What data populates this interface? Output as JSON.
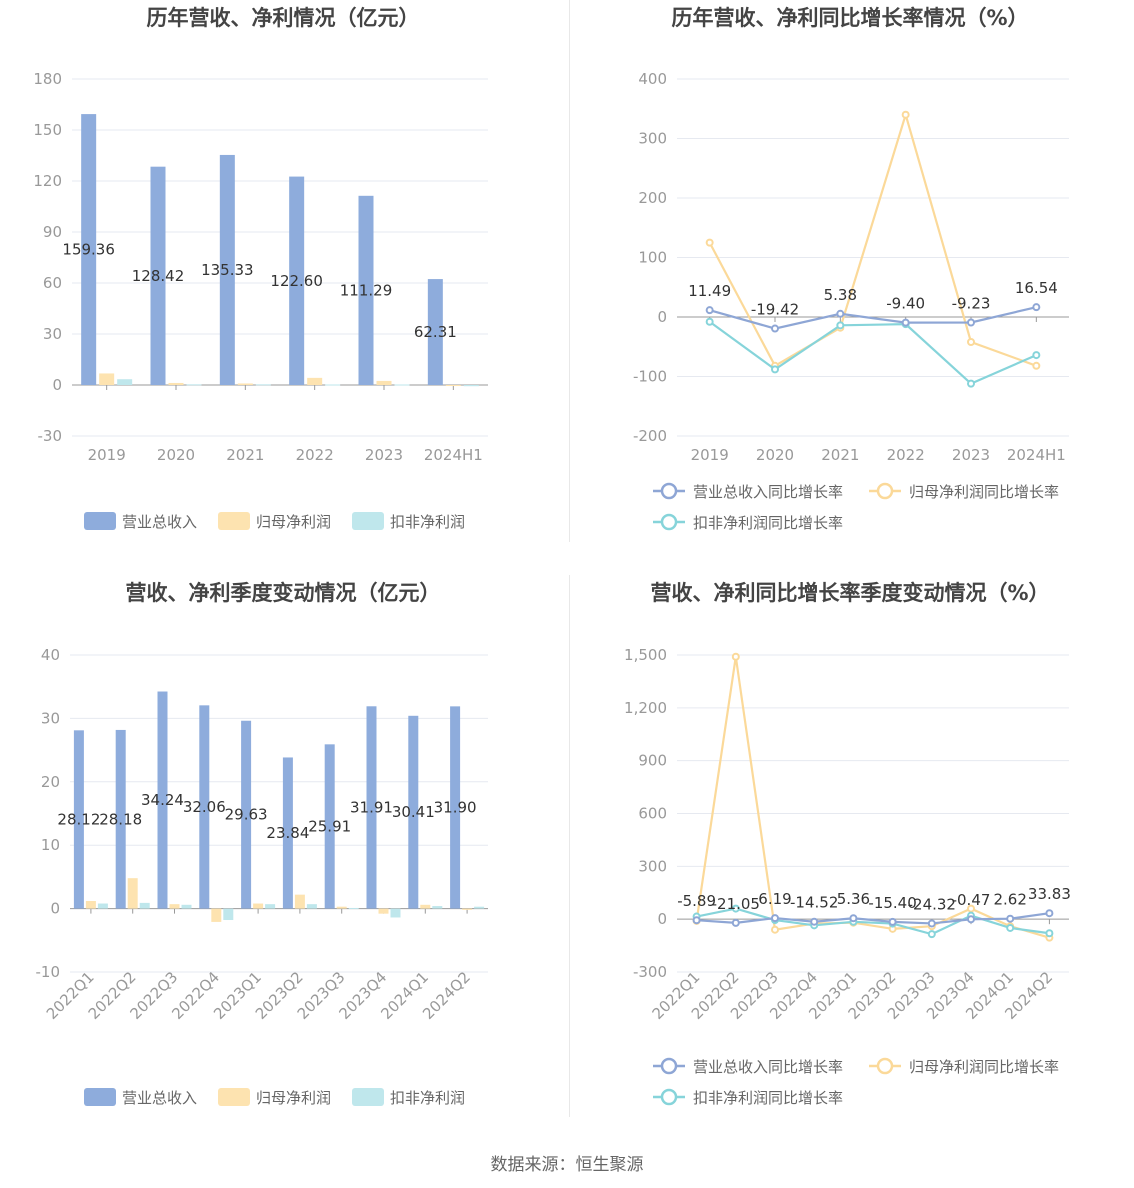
{
  "colors": {
    "revenue": "#8eacdc",
    "net_profit": "#fde3b0",
    "deducted_profit": "#bfe7ec",
    "revenue_line": "#8ea6d5",
    "net_line": "#fbd999",
    "deducted_line": "#86d4da"
  },
  "source": "数据来源：恒生聚源",
  "chart_data": [
    {
      "type": "bar",
      "title": "历年营收、净利情况（亿元）",
      "categories": [
        "2019",
        "2020",
        "2021",
        "2022",
        "2023",
        "2024H1"
      ],
      "ylim": [
        -30,
        180
      ],
      "yticks": [
        -30,
        0,
        30,
        60,
        90,
        120,
        150,
        180
      ],
      "series": [
        {
          "name": "营业总收入",
          "values": [
            159.36,
            128.42,
            135.33,
            122.6,
            111.29,
            62.31
          ]
        },
        {
          "name": "归母净利润",
          "values": [
            6.8,
            1.2,
            0.9,
            4.2,
            2.4,
            -0.6
          ]
        },
        {
          "name": "扣非净利润",
          "values": [
            3.4,
            0.4,
            0.4,
            0.3,
            0.3,
            -0.7
          ]
        }
      ],
      "data_labels": [
        "159.36",
        "128.42",
        "135.33",
        "122.60",
        "111.29",
        "62.31"
      ],
      "grid": true,
      "legend": "bottom"
    },
    {
      "type": "line",
      "title": "历年营收、净利同比增长率情况（%）",
      "categories": [
        "2019",
        "2020",
        "2021",
        "2022",
        "2023",
        "2024H1"
      ],
      "ylim": [
        -200,
        400
      ],
      "yticks": [
        -200,
        -100,
        0,
        100,
        200,
        300,
        400
      ],
      "series": [
        {
          "name": "营业总收入同比增长率",
          "values": [
            11.49,
            -19.42,
            5.38,
            -9.4,
            -9.23,
            16.54
          ]
        },
        {
          "name": "归母净利润同比增长率",
          "values": [
            125,
            -82,
            -18,
            340,
            -42,
            -82
          ]
        },
        {
          "name": "扣非净利润同比增长率",
          "values": [
            -8,
            -88,
            -14,
            -12,
            -112,
            -64
          ]
        }
      ],
      "data_labels": [
        "11.49",
        "-19.42",
        "5.38",
        "-9.40",
        "-9.23",
        "16.54"
      ],
      "grid": true,
      "legend": "bottom"
    },
    {
      "type": "bar",
      "title": "营收、净利季度变动情况（亿元）",
      "categories": [
        "2022Q1",
        "2022Q2",
        "2022Q3",
        "2022Q4",
        "2023Q1",
        "2023Q2",
        "2023Q3",
        "2023Q4",
        "2024Q1",
        "2024Q2"
      ],
      "ylim": [
        -10,
        40
      ],
      "yticks": [
        -10,
        0,
        10,
        20,
        30,
        40
      ],
      "series": [
        {
          "name": "营业总收入",
          "values": [
            28.12,
            28.18,
            34.24,
            32.06,
            29.63,
            23.84,
            25.91,
            31.91,
            30.41,
            31.9
          ]
        },
        {
          "name": "归母净利润",
          "values": [
            1.2,
            4.8,
            0.7,
            -2.1,
            0.8,
            2.2,
            0.3,
            -0.8,
            0.6,
            -0.2
          ]
        },
        {
          "name": "扣非净利润",
          "values": [
            0.8,
            0.9,
            0.6,
            -1.8,
            0.7,
            0.7,
            0.1,
            -1.4,
            0.4,
            0.3
          ]
        }
      ],
      "data_labels": [
        "28.12",
        "28.18",
        "34.24",
        "32.06",
        "29.63",
        "23.84",
        "25.91",
        "31.91",
        "30.41",
        "31.90"
      ],
      "grid": true,
      "legend": "bottom"
    },
    {
      "type": "line",
      "title": "营收、净利同比增长率季度变动情况（%）",
      "categories": [
        "2022Q1",
        "2022Q2",
        "2022Q3",
        "2022Q4",
        "2023Q1",
        "2023Q2",
        "2023Q3",
        "2023Q4",
        "2024Q1",
        "2024Q2"
      ],
      "ylim": [
        -300,
        1500
      ],
      "yticks": [
        -300,
        0,
        300,
        600,
        900,
        1200,
        1500
      ],
      "ytick_labels": [
        "-300",
        "0",
        "300",
        "600",
        "900",
        "1,200",
        "1,500"
      ],
      "series": [
        {
          "name": "营业总收入同比增长率",
          "values": [
            -5.89,
            -21.05,
            6.19,
            -14.52,
            5.36,
            -15.4,
            -24.32,
            -0.47,
            2.62,
            33.83
          ]
        },
        {
          "name": "归母净利润同比增长率",
          "values": [
            -10,
            1490,
            -60,
            -25,
            -20,
            -55,
            -40,
            60,
            -40,
            -105
          ]
        },
        {
          "name": "扣非净利润同比增长率",
          "values": [
            15,
            60,
            -5,
            -35,
            -15,
            -25,
            -85,
            20,
            -50,
            -80
          ]
        }
      ],
      "data_labels": [
        "-5.89",
        "-21.05",
        "6.19",
        "-14.52",
        "5.36",
        "-15.40",
        "-24.32",
        "-0.47",
        "2.62",
        "33.83"
      ],
      "grid": true,
      "legend": "bottom"
    }
  ]
}
